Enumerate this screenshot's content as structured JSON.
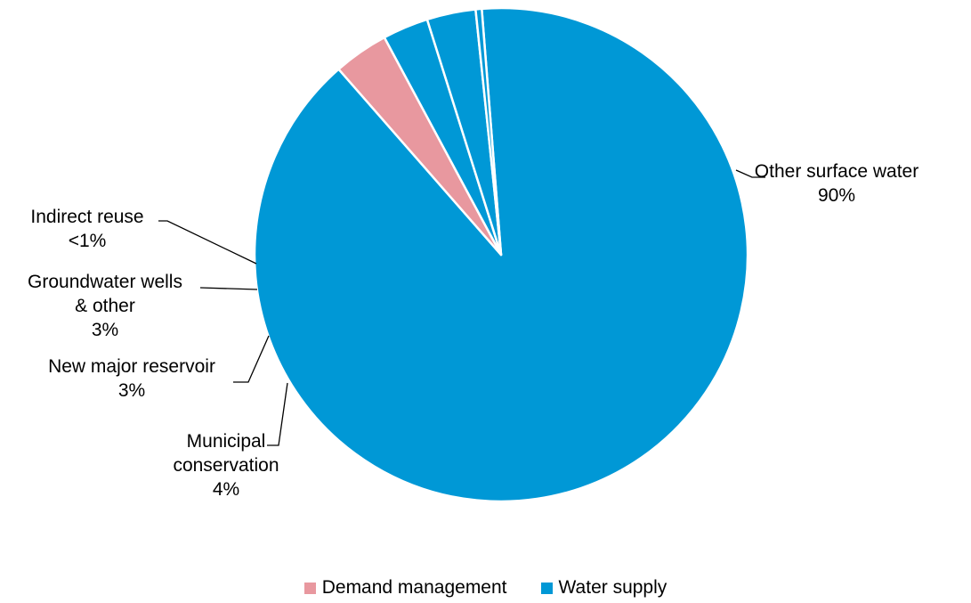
{
  "chart_data": {
    "type": "pie",
    "title": "",
    "slices": [
      {
        "label_lines": [
          "Other surface water",
          "90%"
        ],
        "value": 89.8,
        "category": "Water supply"
      },
      {
        "label_lines": [
          "Municipal",
          "conservation",
          "4%"
        ],
        "value": 3.6,
        "category": "Demand management"
      },
      {
        "label_lines": [
          "New major reservoir",
          "3%"
        ],
        "value": 3.0,
        "category": "Water supply"
      },
      {
        "label_lines": [
          "Groundwater wells",
          "& other",
          "3%"
        ],
        "value": 3.2,
        "category": "Water supply"
      },
      {
        "label_lines": [
          "Indirect reuse",
          "<1%"
        ],
        "value": 0.4,
        "category": "Water supply"
      }
    ],
    "legend": {
      "position": "bottom",
      "items": [
        {
          "name": "Demand management",
          "color": "#E8989F"
        },
        {
          "name": "Water supply",
          "color": "#0098D6"
        }
      ]
    }
  }
}
